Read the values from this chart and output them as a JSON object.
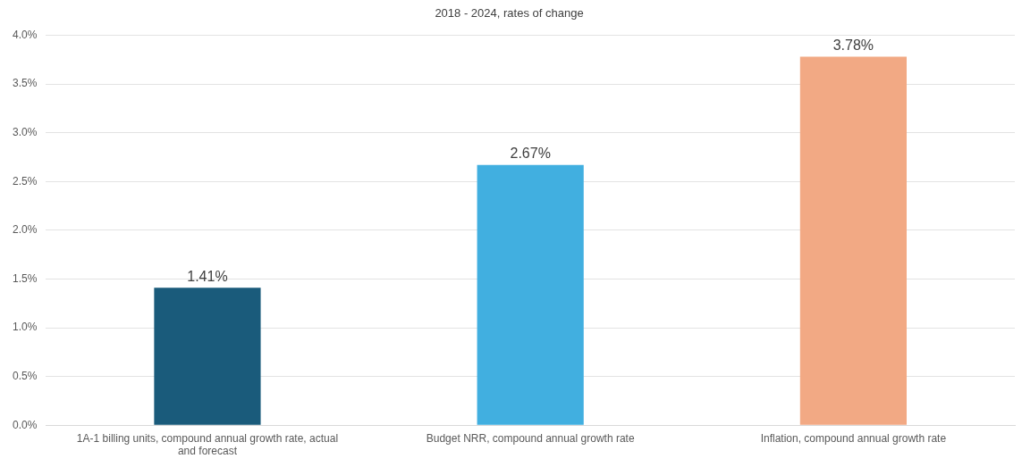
{
  "chart_data": {
    "type": "bar",
    "title": "2018 - 2024, rates of change",
    "categories": [
      "1A-1 billing units, compound annual growth rate, actual and forecast",
      "Budget NRR, compound annual growth rate",
      "Inflation, compound annual growth rate"
    ],
    "values": [
      1.41,
      2.67,
      3.78
    ],
    "colors": [
      "#1a5b7b",
      "#41afe0",
      "#f2a984"
    ],
    "value_labels": [
      "1.41%",
      "2.67%",
      "3.78%"
    ],
    "ylim": [
      0,
      4
    ],
    "yticks": [
      {
        "value": 0,
        "label": "0.0%"
      },
      {
        "value": 0.5,
        "label": "0.5%"
      },
      {
        "value": 1,
        "label": "1.0%"
      },
      {
        "value": 1.5,
        "label": "1.5%"
      },
      {
        "value": 2,
        "label": "2.0%"
      },
      {
        "value": 2.5,
        "label": "2.5%"
      },
      {
        "value": 3,
        "label": "3.0%"
      },
      {
        "value": 3.5,
        "label": "3.5%"
      },
      {
        "value": 4,
        "label": "4.0%"
      }
    ],
    "grid": "y",
    "legend": false
  }
}
